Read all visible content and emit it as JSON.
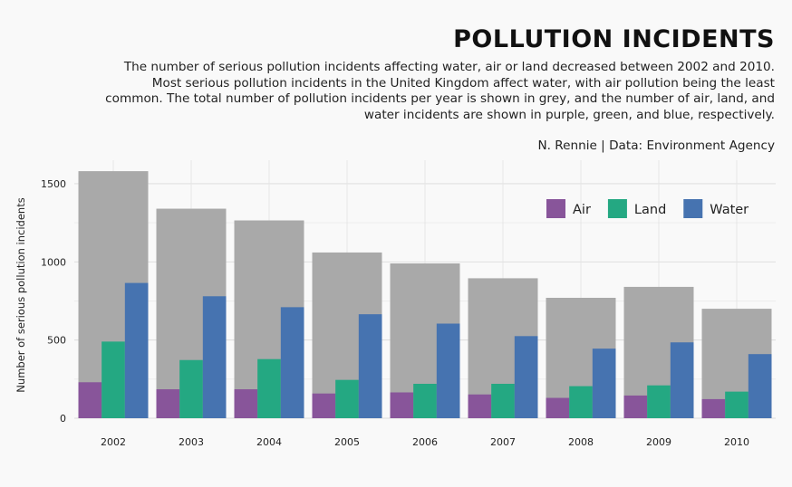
{
  "chart_data": {
    "type": "bar",
    "title": "Pollution Incidents",
    "subtitle": "The number of serious pollution incidents affecting water, air or land decreased between 2002 and 2010. Most serious pollution incidents in the United Kingdom affect water, with air pollution being the least common. The total number of pollution incidents per year is shown in grey, and the number of air, land, and water incidents are shown in purple, green, and blue, respectively.",
    "caption": "N. Rennie | Data: Environment Agency",
    "xlabel": "",
    "ylabel": "Number of serious pollution incidents",
    "ylim": [
      0,
      1650
    ],
    "yticks": [
      0,
      500,
      1000,
      1500
    ],
    "grid": true,
    "legend_position": "top-right",
    "categories": [
      "2002",
      "2003",
      "2004",
      "2005",
      "2006",
      "2007",
      "2008",
      "2009",
      "2010"
    ],
    "total": {
      "values": [
        1580,
        1340,
        1265,
        1060,
        990,
        895,
        770,
        840,
        700
      ],
      "color": "#a9a9a9"
    },
    "series": [
      {
        "name": "Air",
        "color": "#88559a",
        "values": [
          230,
          185,
          185,
          158,
          165,
          152,
          130,
          145,
          122
        ]
      },
      {
        "name": "Land",
        "color": "#24a882",
        "values": [
          490,
          372,
          378,
          245,
          220,
          220,
          205,
          210,
          170
        ]
      },
      {
        "name": "Water",
        "color": "#4673b0",
        "values": [
          865,
          780,
          710,
          665,
          605,
          525,
          445,
          485,
          410
        ]
      }
    ]
  }
}
